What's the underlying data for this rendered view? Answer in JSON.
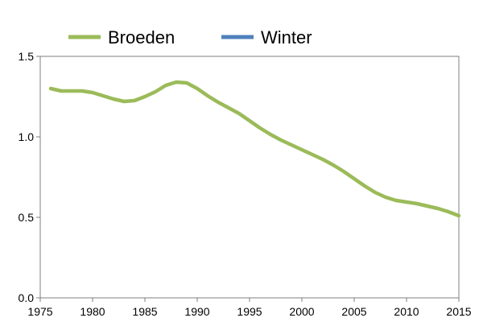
{
  "chart_data": {
    "type": "line",
    "title": "",
    "xlabel": "",
    "ylabel": "",
    "xlim": [
      1975,
      2015
    ],
    "ylim": [
      0,
      1.5
    ],
    "x_ticks": [
      "1975",
      "1980",
      "1985",
      "1990",
      "1995",
      "2000",
      "2005",
      "2010",
      "2015"
    ],
    "y_ticks": [
      "0.0",
      "0.5",
      "1.0",
      "1.5"
    ],
    "grid": false,
    "legend_position": "top",
    "series": [
      {
        "name": "Broeden",
        "color": "#9bbb59",
        "x": [
          1976,
          1977,
          1978,
          1979,
          1980,
          1981,
          1982,
          1983,
          1984,
          1985,
          1986,
          1987,
          1988,
          1989,
          1990,
          1991,
          1992,
          1993,
          1994,
          1995,
          1996,
          1997,
          1998,
          1999,
          2000,
          2001,
          2002,
          2003,
          2004,
          2005,
          2006,
          2007,
          2008,
          2009,
          2010,
          2011,
          2012,
          2013,
          2014,
          2015
        ],
        "y": [
          1.3,
          1.285,
          1.285,
          1.285,
          1.275,
          1.255,
          1.235,
          1.22,
          1.225,
          1.25,
          1.28,
          1.32,
          1.34,
          1.335,
          1.3,
          1.255,
          1.215,
          1.18,
          1.145,
          1.1,
          1.055,
          1.015,
          0.98,
          0.95,
          0.92,
          0.89,
          0.86,
          0.825,
          0.785,
          0.74,
          0.695,
          0.655,
          0.625,
          0.605,
          0.595,
          0.585,
          0.57,
          0.555,
          0.535,
          0.51
        ]
      },
      {
        "name": "Winter",
        "color": "#4f81bd",
        "x": [],
        "y": []
      }
    ]
  }
}
